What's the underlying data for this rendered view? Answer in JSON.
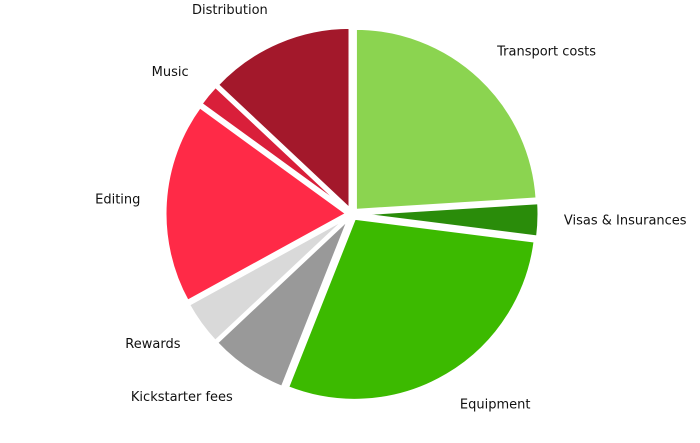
{
  "chart_data": {
    "type": "pie",
    "categories": [
      "Transport costs",
      "Visas & Insurances",
      "Equipment",
      "Kickstarter fees",
      "Rewards",
      "Editing",
      "Music",
      "Distribution"
    ],
    "values": [
      24,
      3,
      29,
      7,
      4,
      18,
      2,
      13
    ],
    "colors": [
      "#8bd450",
      "#2a8c0a",
      "#3cba00",
      "#999999",
      "#d9d9d9",
      "#ff2a47",
      "#d91f3a",
      "#a3182b"
    ]
  }
}
